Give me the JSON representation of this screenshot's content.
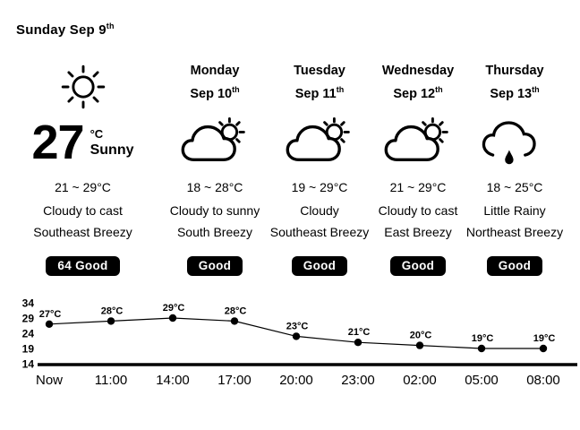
{
  "title": {
    "text": "Sunday Sep 9",
    "suffix": "th"
  },
  "today": {
    "icon": "sun",
    "temperature": "27",
    "unit": "°C",
    "condition": "Sunny",
    "range": "21 ~ 29°C",
    "sky": "Cloudy to cast",
    "wind": "Southeast Breezy",
    "aqi_value": "64",
    "aqi_label": "Good"
  },
  "days": [
    {
      "name": "Monday",
      "date": "Sep 10",
      "suffix": "th",
      "icon": "cloud-sun",
      "range": "18 ~ 28°C",
      "sky": "Cloudy to sunny",
      "wind": "South Breezy",
      "aqi_label": "Good"
    },
    {
      "name": "Tuesday",
      "date": "Sep 11",
      "suffix": "th",
      "icon": "cloud-sun",
      "range": "19 ~ 29°C",
      "sky": "Cloudy",
      "wind": "Southeast Breezy",
      "aqi_label": "Good"
    },
    {
      "name": "Wednesday",
      "date": "Sep 12",
      "suffix": "th",
      "icon": "cloud-sun",
      "range": "21 ~ 29°C",
      "sky": "Cloudy to cast",
      "wind": "East Breezy",
      "aqi_label": "Good"
    },
    {
      "name": "Thursday",
      "date": "Sep 13",
      "suffix": "th",
      "icon": "cloud-rain",
      "range": "18 ~ 25°C",
      "sky": "Little Rainy",
      "wind": "Northeast Breezy",
      "aqi_label": "Good"
    }
  ],
  "chart_data": {
    "type": "line",
    "x": [
      "Now",
      "11:00",
      "14:00",
      "17:00",
      "20:00",
      "23:00",
      "02:00",
      "05:00",
      "08:00"
    ],
    "values": [
      27,
      28,
      29,
      28,
      23,
      21,
      20,
      19,
      19
    ],
    "point_labels": [
      "27°C",
      "28°C",
      "29°C",
      "28°C",
      "23°C",
      "21°C",
      "20°C",
      "19°C",
      "19°C"
    ],
    "yticks": [
      34,
      29,
      24,
      19,
      14
    ],
    "ylim": [
      14,
      34
    ],
    "title": "",
    "xlabel": "",
    "ylabel": "",
    "grid": false,
    "legend": false,
    "line_color": "#000000",
    "point_color": "#000000"
  },
  "colors": {
    "background": "#ffffff",
    "text": "#000000",
    "badge_bg": "#000000",
    "badge_text": "#ffffff"
  }
}
